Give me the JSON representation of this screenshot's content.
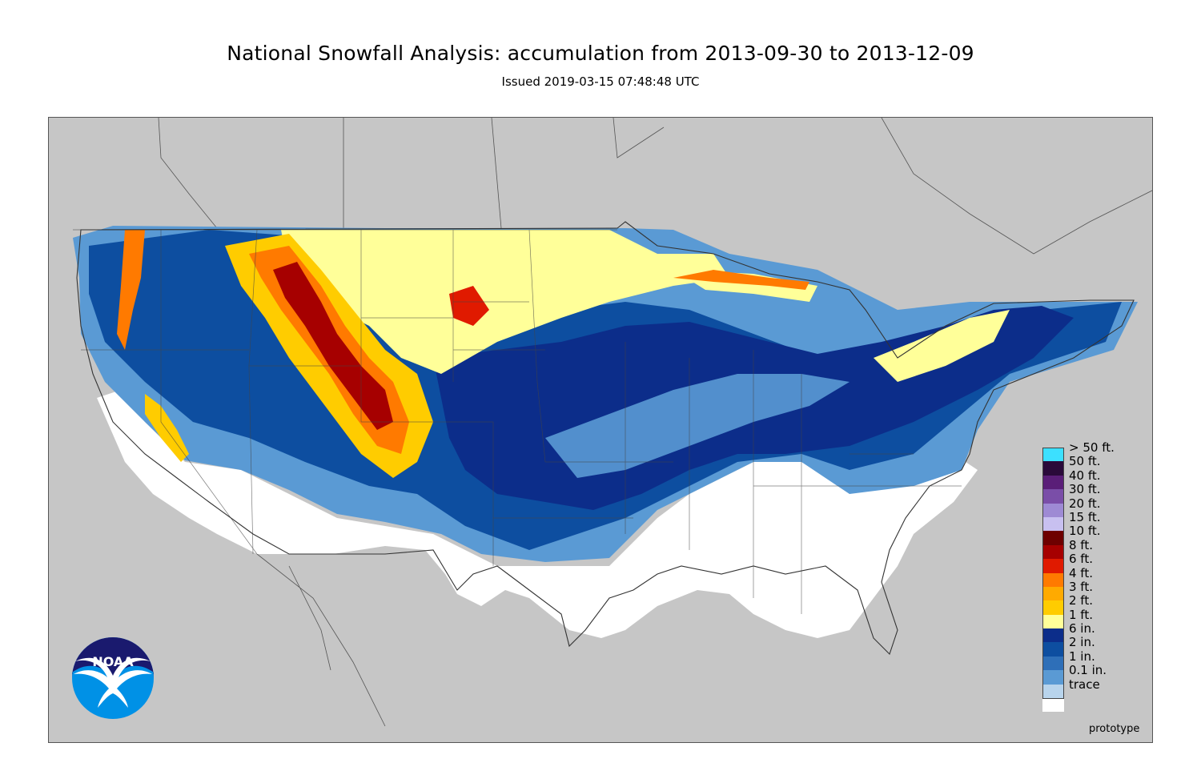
{
  "header": {
    "title": "National Snowfall Analysis: accumulation from 2013-09-30 to 2013-12-09",
    "subtitle": "Issued 2019-03-15 07:48:48 UTC"
  },
  "legend": {
    "items": [
      {
        "label": "> 50 ft.",
        "color": "#3ce0ff"
      },
      {
        "label": "50 ft.",
        "color": "#2a0a3a"
      },
      {
        "label": "40 ft.",
        "color": "#5a1e78"
      },
      {
        "label": "30 ft.",
        "color": "#7a4ea8"
      },
      {
        "label": "20 ft.",
        "color": "#9e8ad4"
      },
      {
        "label": "15 ft.",
        "color": "#c8c0f0"
      },
      {
        "label": "10 ft.",
        "color": "#6e0000"
      },
      {
        "label": "8 ft.",
        "color": "#a60000"
      },
      {
        "label": "6 ft.",
        "color": "#e01a00"
      },
      {
        "label": "4 ft.",
        "color": "#ff7a00"
      },
      {
        "label": "3 ft.",
        "color": "#ffaa00"
      },
      {
        "label": "2 ft.",
        "color": "#ffcc00"
      },
      {
        "label": "1 ft.",
        "color": "#ffff99"
      },
      {
        "label": "6 in.",
        "color": "#0c2d8a"
      },
      {
        "label": "2 in.",
        "color": "#0d4ea0"
      },
      {
        "label": "1 in.",
        "color": "#2e6fb8"
      },
      {
        "label": "0.1 in.",
        "color": "#5a9ad4"
      },
      {
        "label": "trace",
        "color": "#b8d4ec"
      }
    ],
    "base_color": "#ffffff"
  },
  "map": {
    "background_color": "#c6c6c6",
    "no_snow_color": "#ffffff"
  },
  "footer": {
    "prototype_label": "prototype"
  },
  "logo": {
    "text": "NOAA",
    "dark_color": "#1a1a6e",
    "light_color": "#0091e6"
  }
}
